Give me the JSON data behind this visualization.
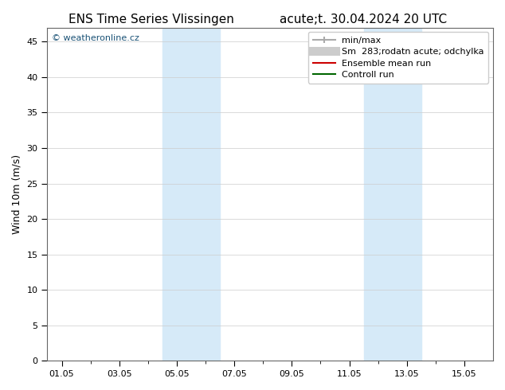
{
  "title": "ENS Time Series Vlissingen        acute;t. 30.04.2024 20 UTC",
  "title_left": "ENS Time Series Vlissingen",
  "title_right": "acute;t. 30.04.2024 20 UTC",
  "ylabel": "Wind 10m (m/s)",
  "watermark": "© weatheronline.cz",
  "xlim_start": "2024-05-01",
  "xlim_end": "2024-05-16",
  "ylim": [
    0,
    47
  ],
  "yticks": [
    0,
    5,
    10,
    15,
    20,
    25,
    30,
    35,
    40,
    45
  ],
  "xtick_labels": [
    "01.05",
    "03.05",
    "05.05",
    "07.05",
    "09.05",
    "11.05",
    "13.05",
    "15.05"
  ],
  "xtick_positions": [
    0,
    2,
    4,
    6,
    8,
    10,
    12,
    14
  ],
  "shaded_regions": [
    {
      "start": 3.5,
      "end": 5.5
    },
    {
      "start": 10.5,
      "end": 12.5
    }
  ],
  "shade_color": "#d6eaf8",
  "bg_color": "#ffffff",
  "grid_color": "#cccccc",
  "legend_items": [
    {
      "label": "min/max",
      "color": "#aaaaaa",
      "linestyle": "-",
      "linewidth": 1.5
    },
    {
      "label": "Sm  283;rodatn acute; odchylka",
      "color": "#cccccc",
      "linestyle": "-",
      "linewidth": 6
    },
    {
      "label": "Ensemble mean run",
      "color": "#cc0000",
      "linestyle": "-",
      "linewidth": 1.5
    },
    {
      "label": "Controll run",
      "color": "#006600",
      "linestyle": "-",
      "linewidth": 1.5
    }
  ],
  "font_size_title": 11,
  "font_size_axis": 9,
  "font_size_tick": 8,
  "font_size_legend": 8,
  "font_size_watermark": 8
}
